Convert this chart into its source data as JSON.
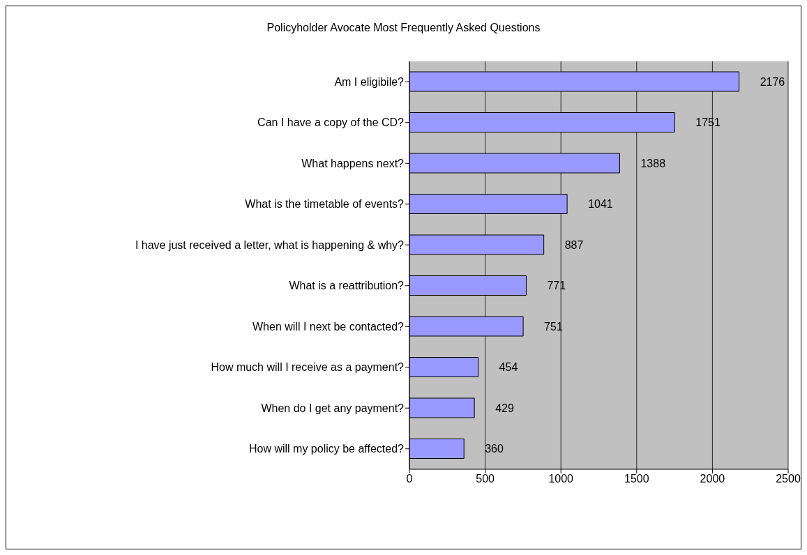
{
  "chart_data": {
    "type": "bar",
    "orientation": "horizontal",
    "title": "Policyholder Avocate Most Frequently Asked Questions",
    "categories": [
      "Am I eligibile?",
      "Can I have a copy of the CD?",
      "What happens next?",
      "What is the timetable of events?",
      "I have just received a letter, what is happening & why?",
      "What is a reattribution?",
      "When will I next be contacted?",
      "How much will I receive as a payment?",
      "When do I get any payment?",
      "How will my policy be affected?"
    ],
    "values": [
      2176,
      1751,
      1388,
      1041,
      887,
      771,
      751,
      454,
      429,
      360
    ],
    "color": "#9999ff",
    "xlim": [
      0,
      2500
    ],
    "xticks": [
      0,
      500,
      1000,
      1500,
      2000,
      2500
    ],
    "grid": "x",
    "data_labels": true
  }
}
